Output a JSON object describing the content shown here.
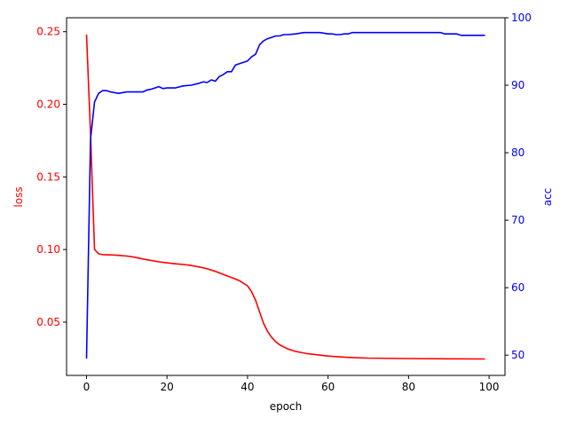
{
  "chart_data": {
    "type": "line",
    "xlabel": "epoch",
    "ylabel_left": "loss",
    "ylabel_right": "acc",
    "xlim": [
      -4.95,
      103.95
    ],
    "ylim_left": [
      0.0133,
      0.2596
    ],
    "ylim_right": [
      47.0,
      100.0
    ],
    "x_ticks": [
      0,
      20,
      40,
      60,
      80,
      100
    ],
    "y_left_ticks": [
      0.05,
      0.1,
      0.15,
      0.2,
      0.25
    ],
    "y_right_ticks": [
      50,
      60,
      70,
      80,
      90,
      100
    ],
    "colors": {
      "loss": "#ff0000",
      "acc": "#0000ff"
    },
    "series": [
      {
        "axis": "left",
        "color": "#ff0000",
        "x": [
          0,
          1,
          2,
          3,
          4,
          6,
          8,
          10,
          12,
          14,
          16,
          18,
          20,
          22,
          24,
          26,
          28,
          30,
          32,
          34,
          36,
          38,
          40,
          41,
          42,
          43,
          44,
          45,
          46,
          47,
          48,
          50,
          52,
          55,
          60,
          65,
          70,
          80,
          90,
          99
        ],
        "y": [
          0.248,
          0.18,
          0.1,
          0.097,
          0.0965,
          0.0963,
          0.096,
          0.0955,
          0.0947,
          0.0935,
          0.0925,
          0.0915,
          0.0908,
          0.0902,
          0.0897,
          0.089,
          0.088,
          0.0867,
          0.085,
          0.0828,
          0.0808,
          0.0785,
          0.075,
          0.071,
          0.065,
          0.057,
          0.049,
          0.0435,
          0.0395,
          0.0365,
          0.0343,
          0.0315,
          0.0298,
          0.0282,
          0.0266,
          0.0257,
          0.0252,
          0.0249,
          0.0247,
          0.0246
        ]
      },
      {
        "axis": "right",
        "color": "#0000ff",
        "x": [
          0,
          1,
          2,
          3,
          4,
          5,
          6,
          8,
          10,
          12,
          14,
          15,
          16,
          18,
          19,
          20,
          22,
          24,
          26,
          28,
          29,
          30,
          31,
          32,
          33,
          34,
          35,
          36,
          37,
          38,
          40,
          41,
          42,
          43,
          44,
          45,
          46,
          47,
          48,
          49,
          50,
          52,
          54,
          55,
          58,
          60,
          61,
          62,
          63,
          64,
          65,
          66,
          70,
          80,
          88,
          89,
          92,
          93,
          99
        ],
        "y": [
          49.5,
          82.0,
          87.5,
          88.8,
          89.2,
          89.2,
          89.0,
          88.8,
          89.0,
          89.0,
          89.0,
          89.3,
          89.4,
          89.8,
          89.5,
          89.6,
          89.6,
          89.9,
          90.0,
          90.3,
          90.5,
          90.4,
          90.8,
          90.6,
          91.3,
          91.6,
          92.0,
          92.0,
          93.0,
          93.2,
          93.6,
          94.2,
          94.6,
          96.0,
          96.6,
          96.9,
          97.1,
          97.3,
          97.3,
          97.5,
          97.5,
          97.6,
          97.8,
          97.8,
          97.8,
          97.6,
          97.6,
          97.5,
          97.5,
          97.6,
          97.6,
          97.8,
          97.8,
          97.8,
          97.8,
          97.6,
          97.6,
          97.4,
          97.4
        ]
      }
    ]
  }
}
